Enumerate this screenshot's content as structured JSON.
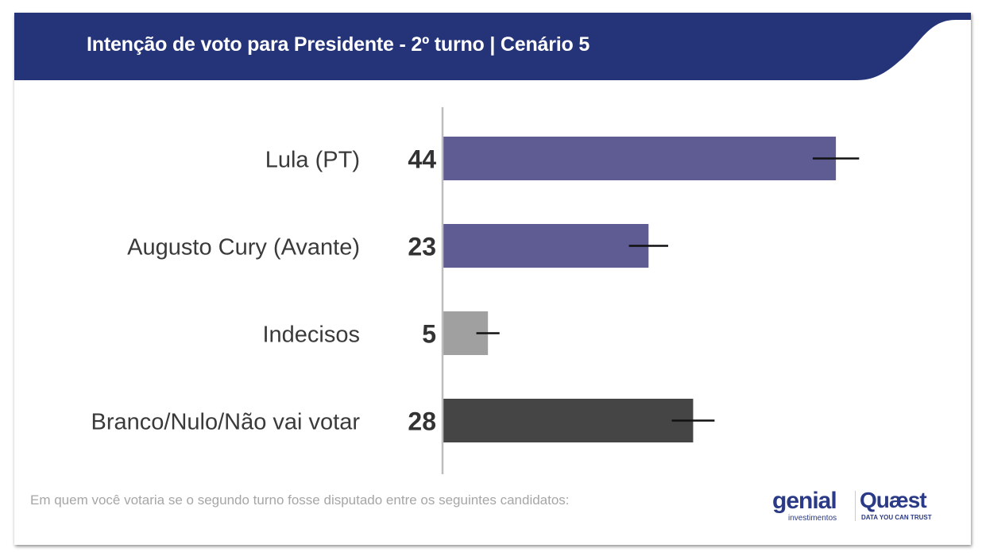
{
  "title": "Intenção de voto para Presidente - 2º turno | Cenário 5",
  "footnote": "Em quem você votaria se o segundo turno fosse disputado entre os seguintes candidatos:",
  "logos": {
    "genial": "genial",
    "genial_sub": "investimentos",
    "quaest": "Quæst",
    "quaest_sub": "DATA YOU CAN TRUST"
  },
  "colors": {
    "header": "#253478",
    "purple": "#5f5b93",
    "gray": "#a0a0a0",
    "dark": "#454545"
  },
  "chart_data": {
    "type": "bar",
    "orientation": "horizontal",
    "categories": [
      "Lula (PT)",
      "Augusto Cury (Avante)",
      "Indecisos",
      "Branco/Nulo/Não vai votar"
    ],
    "values": [
      44,
      23,
      5,
      28
    ],
    "error_margins": [
      2.6,
      2.2,
      1.3,
      2.4
    ],
    "bar_colors": [
      "#5f5b93",
      "#5f5b93",
      "#a0a0a0",
      "#454545"
    ],
    "xlim": [
      0,
      58
    ],
    "grid": false,
    "data_labels": true
  }
}
